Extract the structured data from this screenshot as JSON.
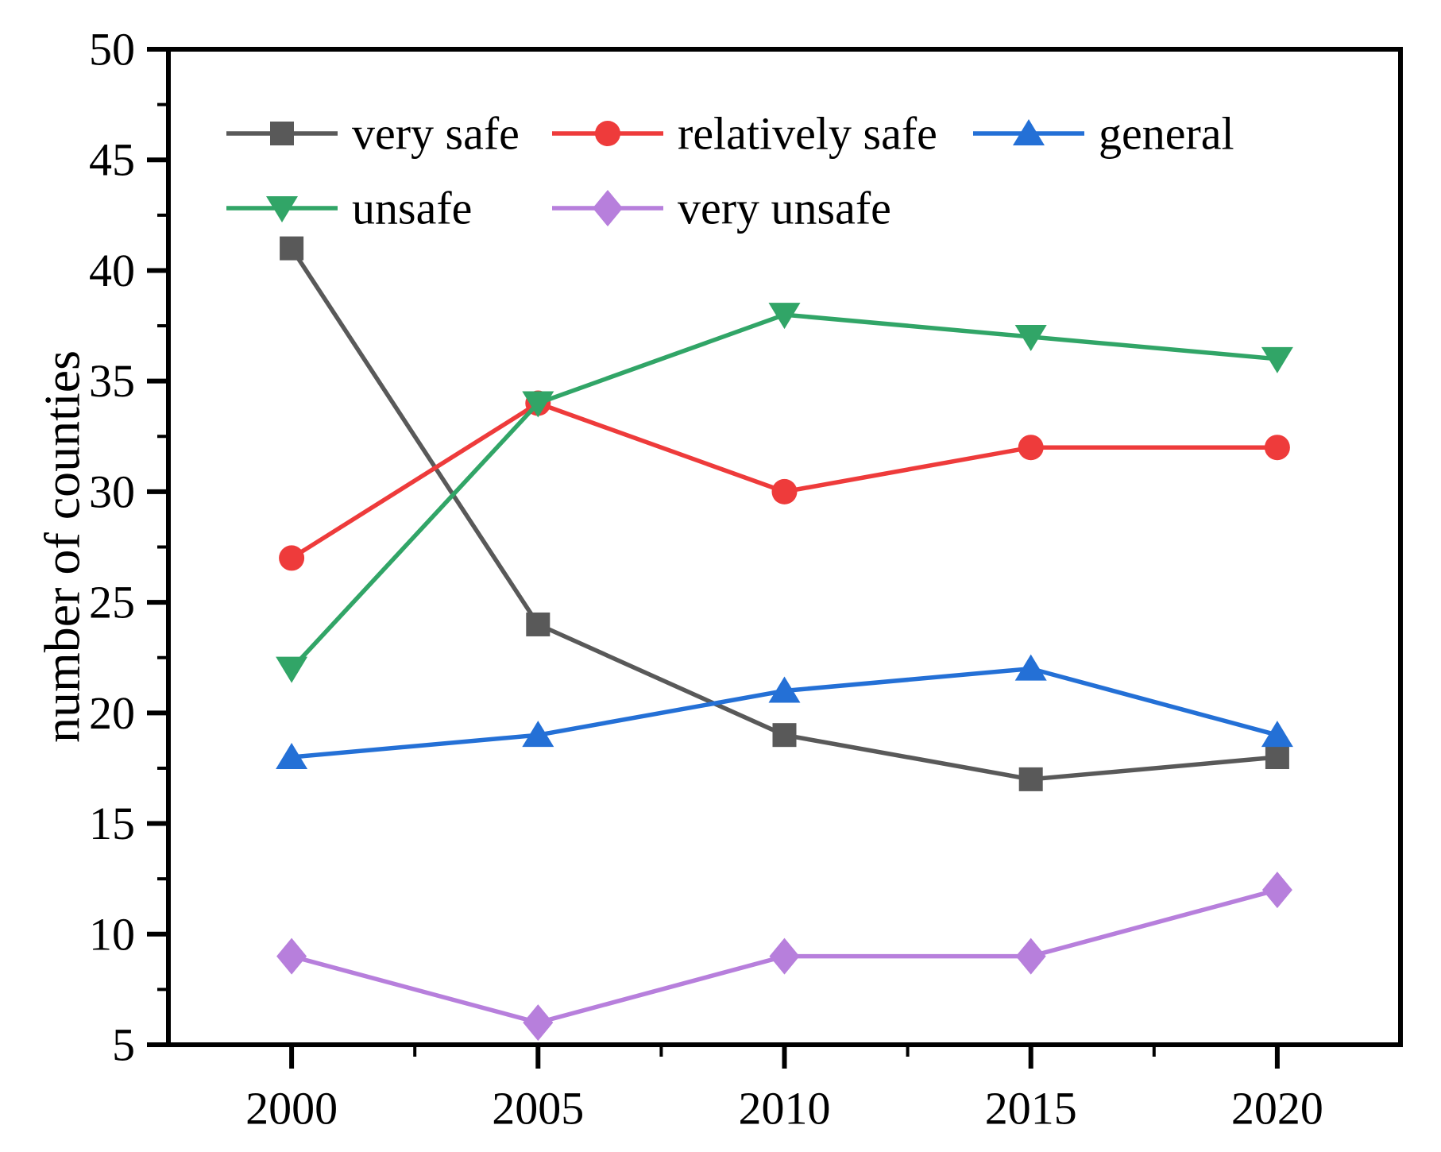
{
  "chart_data": {
    "type": "line",
    "title": "",
    "xlabel": "",
    "ylabel": "number of counties",
    "x": [
      2000,
      2005,
      2010,
      2015,
      2020
    ],
    "x_tick_labels": [
      "2000",
      "2005",
      "2010",
      "2015",
      "2020"
    ],
    "xlim": [
      1997.5,
      2022.5
    ],
    "ylim": [
      5,
      50
    ],
    "y_major_ticks": [
      50,
      45,
      40,
      35,
      30,
      25,
      20,
      15,
      10,
      5
    ],
    "y_tick_labels": [
      "50",
      "45",
      "40",
      "35",
      "30",
      "25",
      "20",
      "15",
      "10",
      "5"
    ],
    "y_minor_ticks": [
      47.5,
      42.5,
      37.5,
      32.5,
      27.5,
      22.5,
      17.5,
      12.5,
      7.5
    ],
    "x_minor_ticks": [
      2002.5,
      2007.5,
      2012.5,
      2017.5
    ],
    "grid": false,
    "legend_position": "top-inside",
    "axis_color": "#000000",
    "series": [
      {
        "name": "very safe",
        "color": "#595959",
        "marker": "square",
        "values": [
          41,
          24,
          19,
          17,
          18
        ]
      },
      {
        "name": "relatively safe",
        "color": "#ee3b3b",
        "marker": "circle",
        "values": [
          27,
          34,
          30,
          32,
          32
        ]
      },
      {
        "name": "general",
        "color": "#2470d6",
        "marker": "triangle-up",
        "values": [
          18,
          19,
          21,
          22,
          19
        ]
      },
      {
        "name": "unsafe",
        "color": "#31a567",
        "marker": "triangle-down",
        "values": [
          22,
          34,
          38,
          37,
          36
        ]
      },
      {
        "name": "very unsafe",
        "color": "#b77fdc",
        "marker": "diamond",
        "values": [
          9,
          6,
          9,
          9,
          12
        ]
      }
    ],
    "legend_rows": [
      [
        "very safe",
        "relatively safe",
        "general"
      ],
      [
        "unsafe",
        "very unsafe"
      ]
    ]
  }
}
